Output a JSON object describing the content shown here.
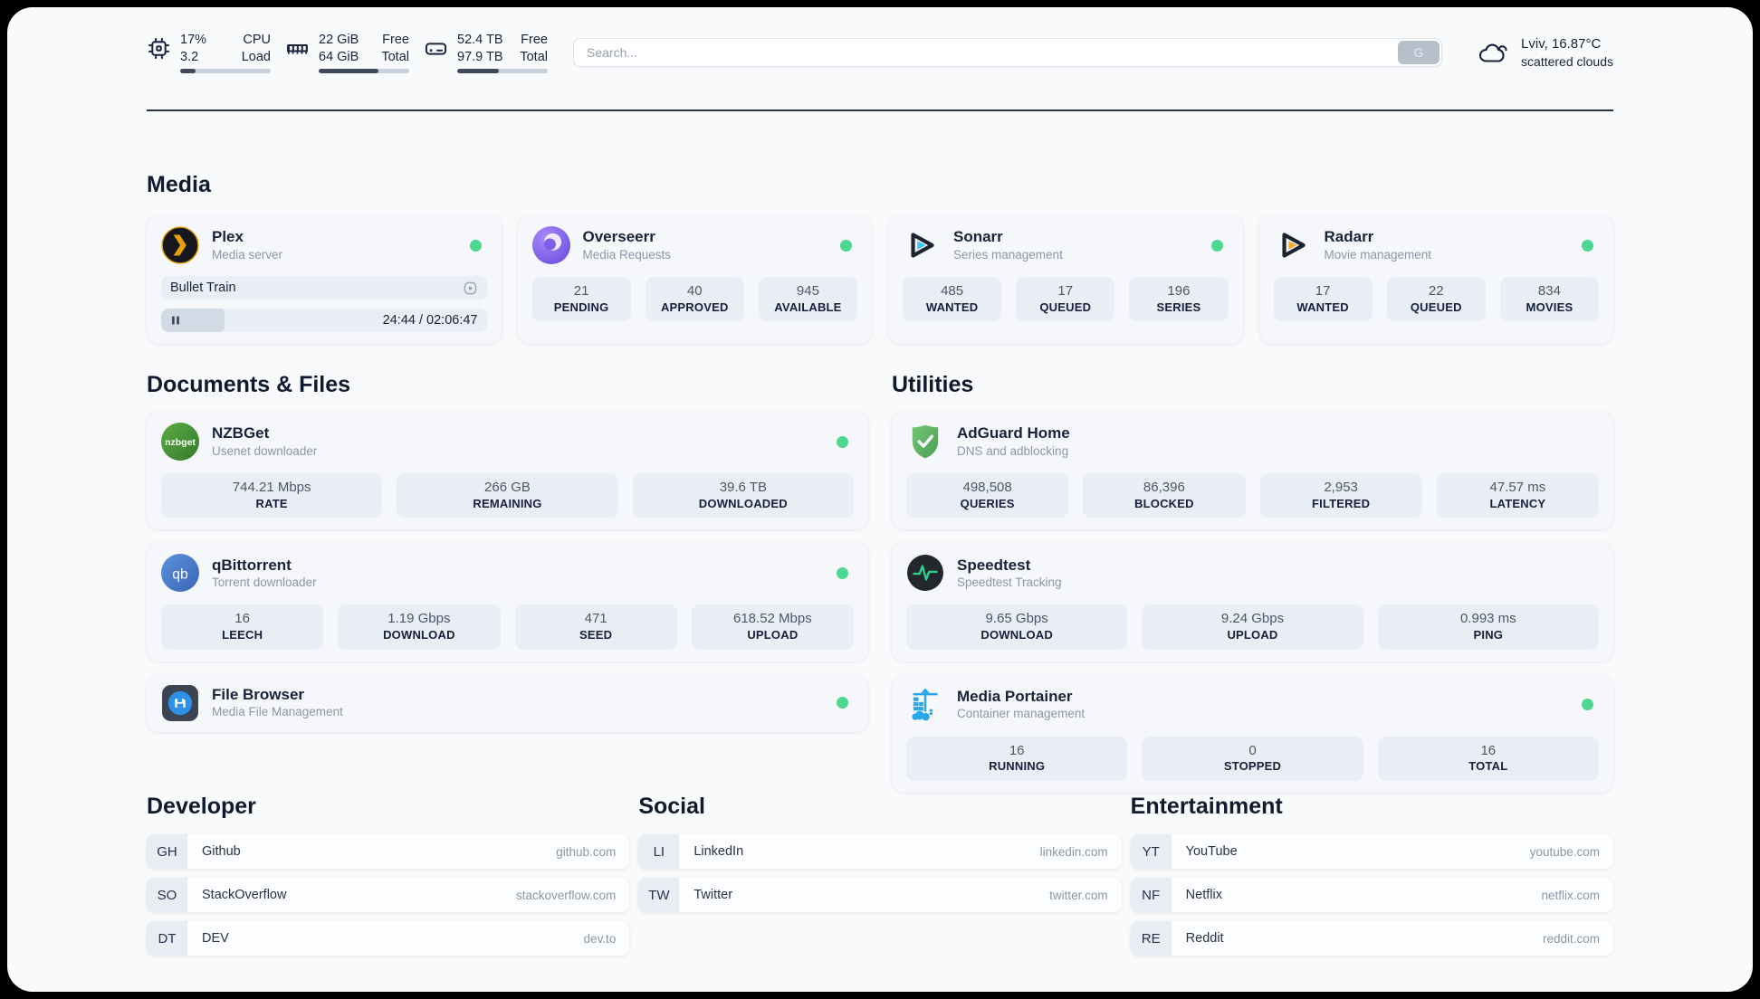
{
  "header": {
    "system_stats": [
      {
        "id": "cpu",
        "values": [
          "17%",
          "3.2"
        ],
        "labels": [
          "CPU",
          "Load"
        ],
        "progress_pct": 17
      },
      {
        "id": "memory",
        "values": [
          "22 GiB",
          "64 GiB"
        ],
        "labels": [
          "Free",
          "Total"
        ],
        "progress_pct": 66
      },
      {
        "id": "disk",
        "values": [
          "52.4 TB",
          "97.9 TB"
        ],
        "labels": [
          "Free",
          "Total"
        ],
        "progress_pct": 46
      }
    ],
    "search": {
      "placeholder": "Search...",
      "button_label": "G"
    },
    "weather": {
      "location_temp": "Lviv, 16.87°C",
      "condition": "scattered clouds"
    }
  },
  "sections": {
    "media": "Media",
    "documents": "Documents & Files",
    "utilities": "Utilities",
    "developer": "Developer",
    "social": "Social",
    "entertainment": "Entertainment"
  },
  "apps": {
    "plex": {
      "name": "Plex",
      "subtitle": "Media server",
      "now_playing": {
        "title": "Bullet Train",
        "time_display": "24:44 / 02:06:47",
        "progress_pct": 19.5
      }
    },
    "overseerr": {
      "name": "Overseerr",
      "subtitle": "Media Requests",
      "stats": [
        {
          "value": "21",
          "label": "PENDING"
        },
        {
          "value": "40",
          "label": "APPROVED"
        },
        {
          "value": "945",
          "label": "AVAILABLE"
        }
      ]
    },
    "sonarr": {
      "name": "Sonarr",
      "subtitle": "Series management",
      "stats": [
        {
          "value": "485",
          "label": "WANTED"
        },
        {
          "value": "17",
          "label": "QUEUED"
        },
        {
          "value": "196",
          "label": "SERIES"
        }
      ]
    },
    "radarr": {
      "name": "Radarr",
      "subtitle": "Movie management",
      "stats": [
        {
          "value": "17",
          "label": "WANTED"
        },
        {
          "value": "22",
          "label": "QUEUED"
        },
        {
          "value": "834",
          "label": "MOVIES"
        }
      ]
    },
    "nzbget": {
      "name": "NZBGet",
      "subtitle": "Usenet downloader",
      "stats": [
        {
          "value": "744.21 Mbps",
          "label": "RATE"
        },
        {
          "value": "266 GB",
          "label": "REMAINING"
        },
        {
          "value": "39.6 TB",
          "label": "DOWNLOADED"
        }
      ]
    },
    "qbittorrent": {
      "name": "qBittorrent",
      "subtitle": "Torrent downloader",
      "stats": [
        {
          "value": "16",
          "label": "LEECH"
        },
        {
          "value": "1.19 Gbps",
          "label": "DOWNLOAD"
        },
        {
          "value": "471",
          "label": "SEED"
        },
        {
          "value": "618.52 Mbps",
          "label": "UPLOAD"
        }
      ]
    },
    "filebrowser": {
      "name": "File Browser",
      "subtitle": "Media File Management"
    },
    "adguard": {
      "name": "AdGuard Home",
      "subtitle": "DNS and adblocking",
      "stats": [
        {
          "value": "498,508",
          "label": "QUERIES"
        },
        {
          "value": "86,396",
          "label": "BLOCKED"
        },
        {
          "value": "2,953",
          "label": "FILTERED"
        },
        {
          "value": "47.57 ms",
          "label": "LATENCY"
        }
      ]
    },
    "speedtest": {
      "name": "Speedtest",
      "subtitle": "Speedtest Tracking",
      "stats": [
        {
          "value": "9.65 Gbps",
          "label": "DOWNLOAD"
        },
        {
          "value": "9.24 Gbps",
          "label": "UPLOAD"
        },
        {
          "value": "0.993 ms",
          "label": "PING"
        }
      ]
    },
    "portainer": {
      "name": "Media Portainer",
      "subtitle": "Container management",
      "stats": [
        {
          "value": "16",
          "label": "RUNNING"
        },
        {
          "value": "0",
          "label": "STOPPED"
        },
        {
          "value": "16",
          "label": "TOTAL"
        }
      ]
    }
  },
  "links": {
    "developer": [
      {
        "abbr": "GH",
        "name": "Github",
        "domain": "github.com"
      },
      {
        "abbr": "SO",
        "name": "StackOverflow",
        "domain": "stackoverflow.com"
      },
      {
        "abbr": "DT",
        "name": "DEV",
        "domain": "dev.to"
      }
    ],
    "social": [
      {
        "abbr": "LI",
        "name": "LinkedIn",
        "domain": "linkedin.com"
      },
      {
        "abbr": "TW",
        "name": "Twitter",
        "domain": "twitter.com"
      }
    ],
    "entertainment": [
      {
        "abbr": "YT",
        "name": "YouTube",
        "domain": "youtube.com"
      },
      {
        "abbr": "NF",
        "name": "Netflix",
        "domain": "netflix.com"
      },
      {
        "abbr": "RE",
        "name": "Reddit",
        "domain": "reddit.com"
      }
    ]
  },
  "colors": {
    "status_online": "#4dd892"
  }
}
